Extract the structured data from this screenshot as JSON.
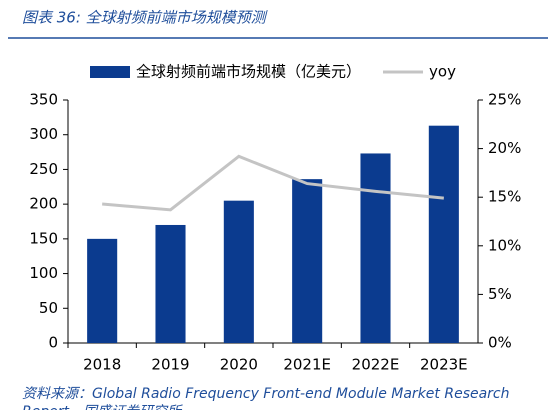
{
  "chart_data": {
    "type": "bar",
    "title": "图表 36:  全球射频前端市场规模预测",
    "source": "资料来源：Global Radio Frequency Front-end Module Market Research Report，国盛证券研究所",
    "categories": [
      "2018",
      "2019",
      "2020",
      "2021E",
      "2022E",
      "2023E"
    ],
    "series": [
      {
        "name": "全球射频前端市场规模（亿美元）",
        "color": "#0b3b8f",
        "type": "bar",
        "values": [
          150,
          170,
          205,
          236,
          273,
          313
        ]
      },
      {
        "name": "yoy",
        "color": "#c4c4c4",
        "type": "line",
        "axis": "y2",
        "values": [
          14.3,
          13.7,
          19.2,
          16.4,
          15.6,
          14.9
        ]
      }
    ],
    "ylim": [
      0,
      350
    ],
    "yticks": [
      0,
      50,
      100,
      150,
      200,
      250,
      300,
      350
    ],
    "y2lim": [
      0,
      25
    ],
    "y2ticks": [
      {
        "value": 0,
        "label": "0%"
      },
      {
        "value": 5,
        "label": "5%"
      },
      {
        "value": 10,
        "label": "10%"
      },
      {
        "value": 15,
        "label": "15%"
      },
      {
        "value": 20,
        "label": "20%"
      },
      {
        "value": 25,
        "label": "25%"
      }
    ],
    "legend": "top"
  }
}
